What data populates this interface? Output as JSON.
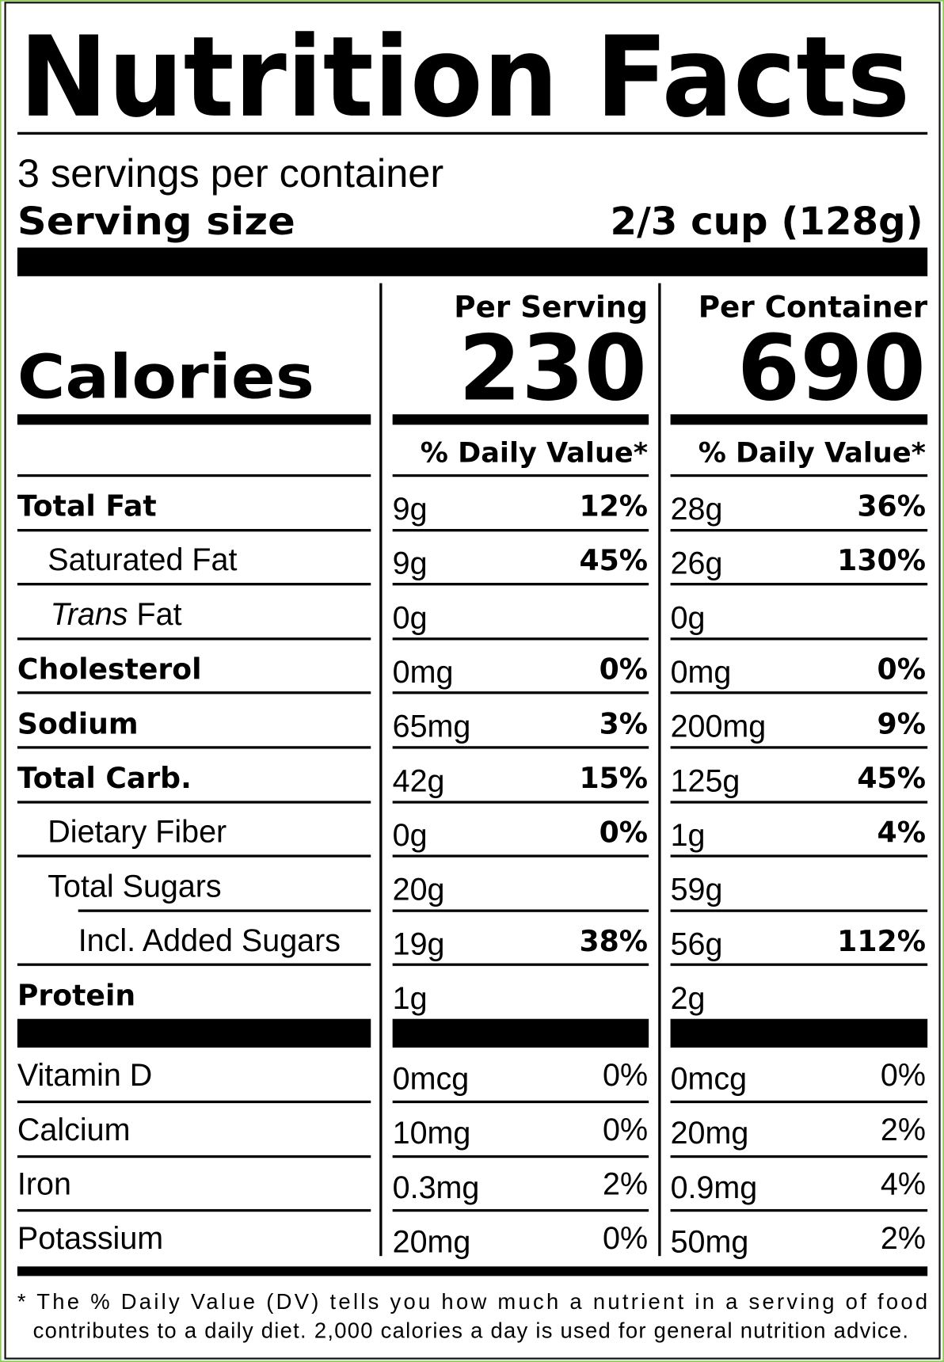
{
  "title": "Nutrition Facts",
  "servings": "3 servings per container",
  "serving_size": {
    "label": "Serving size",
    "value": "2/3 cup (128g)"
  },
  "columns": [
    "Per Serving",
    "Per Container"
  ],
  "calories": {
    "label": "Calories",
    "values": [
      "230",
      "690"
    ]
  },
  "daily_value_header": "% Daily Value*",
  "rows": [
    {
      "name": "Total Fat",
      "per_serving": {
        "amount": "9g",
        "dv": "12%"
      },
      "per_container": {
        "amount": "28g",
        "dv": "36%"
      }
    },
    {
      "name": "Saturated Fat",
      "per_serving": {
        "amount": "9g",
        "dv": "45%"
      },
      "per_container": {
        "amount": "26g",
        "dv": "130%"
      }
    },
    {
      "name_italic": "Trans",
      "name": "Fat",
      "per_serving": {
        "amount": "0g",
        "dv": null
      },
      "per_container": {
        "amount": "0g",
        "dv": null
      }
    },
    {
      "name": "Cholesterol",
      "per_serving": {
        "amount": "0mg",
        "dv": "0%"
      },
      "per_container": {
        "amount": "0mg",
        "dv": "0%"
      }
    },
    {
      "name": "Sodium",
      "per_serving": {
        "amount": "65mg",
        "dv": "3%"
      },
      "per_container": {
        "amount": "200mg",
        "dv": "9%"
      }
    },
    {
      "name": "Total Carb.",
      "per_serving": {
        "amount": "42g",
        "dv": "15%"
      },
      "per_container": {
        "amount": "125g",
        "dv": "45%"
      }
    },
    {
      "name": "Dietary Fiber",
      "per_serving": {
        "amount": "0g",
        "dv": "0%"
      },
      "per_container": {
        "amount": "1g",
        "dv": "4%"
      }
    },
    {
      "name": "Total Sugars",
      "per_serving": {
        "amount": "20g",
        "dv": null
      },
      "per_container": {
        "amount": "59g",
        "dv": null
      }
    },
    {
      "name": "Incl. Added Sugars",
      "per_serving": {
        "amount": "19g",
        "dv": "38%"
      },
      "per_container": {
        "amount": "56g",
        "dv": "112%"
      }
    },
    {
      "name": "Protein",
      "per_serving": {
        "amount": "1g",
        "dv": null
      },
      "per_container": {
        "amount": "2g",
        "dv": null
      }
    }
  ],
  "vitamins": [
    {
      "name": "Vitamin D",
      "per_serving": {
        "amount": "0mcg",
        "dv": "0%"
      },
      "per_container": {
        "amount": "0mcg",
        "dv": "0%"
      }
    },
    {
      "name": "Calcium",
      "per_serving": {
        "amount": "10mg",
        "dv": "0%"
      },
      "per_container": {
        "amount": "20mg",
        "dv": "2%"
      }
    },
    {
      "name": "Iron",
      "per_serving": {
        "amount": "0.3mg",
        "dv": "2%"
      },
      "per_container": {
        "amount": "0.9mg",
        "dv": "4%"
      }
    },
    {
      "name": "Potassium",
      "per_serving": {
        "amount": "20mg",
        "dv": "0%"
      },
      "per_container": {
        "amount": "50mg",
        "dv": "2%"
      }
    }
  ],
  "footnote": [
    "* The % Daily Value (DV) tells you how much a nutrient in a serving of food",
    "contributes to a daily diet. 2,000 calories a day is used for general nutrition advice."
  ]
}
